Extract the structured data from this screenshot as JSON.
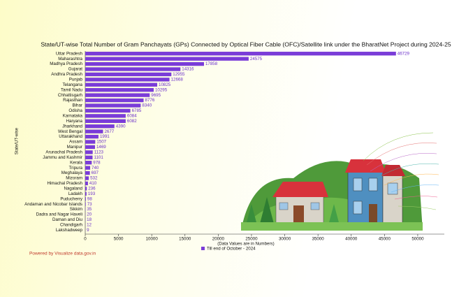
{
  "chart_data": {
    "type": "hbar",
    "title": "State/UT-wise Total Number of Gram Panchayats (GPs) Connected by Optical Fiber Cable (OFC)/Satellite link under the BharatNet Project during 2024-25",
    "xlabel": "(Data Values are in Numbers)",
    "ylabel": "State/UT-wise",
    "footer": "Powered by Visualize data.gov.in",
    "categories": [
      "Uttar Pradesh",
      "Maharashtra",
      "Madhya Pradesh",
      "Gujarat",
      "Andhra Pradesh",
      "Punjab",
      "Telangana",
      "Tamil Nadu",
      "Chhattisgarh",
      "Rajasthan",
      "Bihar",
      "Odisha",
      "Karnataka",
      "Haryana",
      "Jharkhand",
      "West Bengal",
      "Uttarakhand",
      "Assam",
      "Manipur",
      "Arunachal Pradesh",
      "Jammu and Kashmir",
      "Kerala",
      "Tripura",
      "Meghalaya",
      "Mizoram",
      "Himachal Pradesh",
      "Nagaland",
      "Ladakh",
      "Puducherry",
      "Andaman and Nicobar Islands",
      "Sikkim",
      "Dadra and Nagar Haveli",
      "Daman and Diu",
      "Chandigarh",
      "Lakshadweep"
    ],
    "series": [
      {
        "name": "Till end of October - 2024",
        "color": "#7a3cd8",
        "values": [
          46729,
          24575,
          17858,
          14316,
          12955,
          12668,
          10825,
          10295,
          9695,
          8776,
          8340,
          6785,
          6084,
          6082,
          4390,
          2677,
          1991,
          1507,
          1469,
          1123,
          1101,
          978,
          740,
          697,
          532,
          410,
          236,
          193,
          98,
          73,
          35,
          20,
          18,
          12,
          9
        ]
      }
    ],
    "xlim": [
      0,
      54000
    ],
    "xticks": [
      0,
      5000,
      10000,
      15000,
      20000,
      25000,
      30000,
      35000,
      40000,
      45000,
      50000
    ],
    "legend": "bottom"
  }
}
